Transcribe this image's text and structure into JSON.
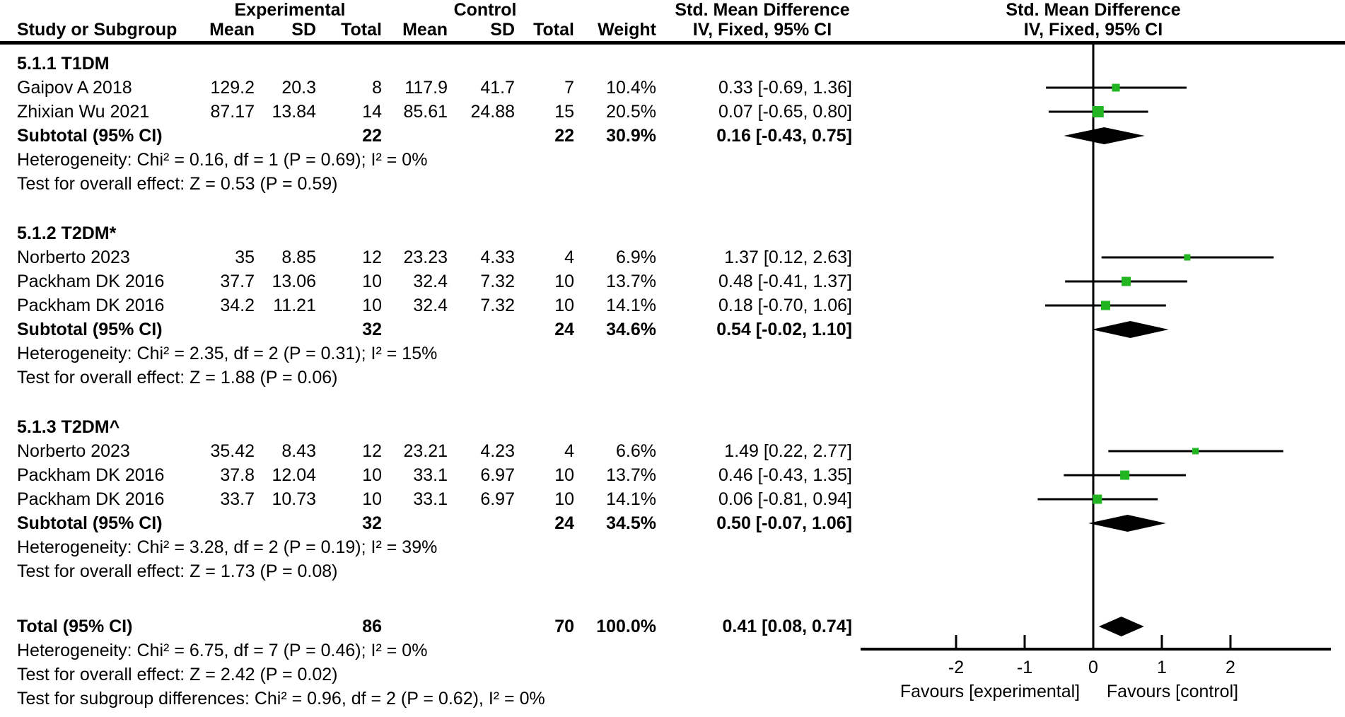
{
  "header": {
    "group_experimental": "Experimental",
    "group_control": "Control",
    "smd_left": "Std. Mean Difference",
    "smd_right": "Std. Mean Difference",
    "col_study": "Study or Subgroup",
    "col_mean": "Mean",
    "col_sd": "SD",
    "col_total": "Total",
    "col_weight": "Weight",
    "col_ci_left": "IV, Fixed, 95% CI",
    "col_ci_right": "IV, Fixed, 95% CI"
  },
  "chart_data": {
    "type": "forest",
    "effect_measure": "Std. Mean Difference",
    "model": "IV, Fixed, 95% CI",
    "marker_color": "#21b521",
    "axis": {
      "ticks": [
        -2,
        -1,
        0,
        1,
        2
      ],
      "range": [
        -3.4,
        3.45
      ],
      "favours_left": "Favours [experimental]",
      "favours_right": "Favours [control]"
    },
    "sections": [
      {
        "label": "5.1.1 T1DM",
        "studies": [
          {
            "study": "Gaipov A 2018",
            "mean1": "129.2",
            "sd1": "20.3",
            "total1": "8",
            "mean2": "117.9",
            "sd2": "41.7",
            "total2": "7",
            "weight": "10.4%",
            "weight_pct": 10.4,
            "ci_text": "0.33 [-0.69, 1.36]",
            "est": 0.33,
            "lo": -0.69,
            "hi": 1.36
          },
          {
            "study": "Zhixian Wu 2021",
            "mean1": "87.17",
            "sd1": "13.84",
            "total1": "14",
            "mean2": "85.61",
            "sd2": "24.88",
            "total2": "15",
            "weight": "20.5%",
            "weight_pct": 20.5,
            "ci_text": "0.07 [-0.65, 0.80]",
            "est": 0.07,
            "lo": -0.65,
            "hi": 0.8
          }
        ],
        "subtotal": {
          "label": "Subtotal (95% CI)",
          "total1": "22",
          "total2": "22",
          "weight": "30.9%",
          "ci_text": "0.16 [-0.43, 0.75]",
          "est": 0.16,
          "lo": -0.43,
          "hi": 0.75
        },
        "heterogeneity": "Heterogeneity: Chi² = 0.16, df = 1 (P = 0.69); I² = 0%",
        "overall_effect": "Test for overall effect: Z = 0.53 (P = 0.59)"
      },
      {
        "label": "5.1.2 T2DM*",
        "studies": [
          {
            "study": "Norberto 2023",
            "mean1": "35",
            "sd1": "8.85",
            "total1": "12",
            "mean2": "23.23",
            "sd2": "4.33",
            "total2": "4",
            "weight": "6.9%",
            "weight_pct": 6.9,
            "ci_text": "1.37 [0.12, 2.63]",
            "est": 1.37,
            "lo": 0.12,
            "hi": 2.63
          },
          {
            "study": "Packham DK 2016",
            "mean1": "37.7",
            "sd1": "13.06",
            "total1": "10",
            "mean2": "32.4",
            "sd2": "7.32",
            "total2": "10",
            "weight": "13.7%",
            "weight_pct": 13.7,
            "ci_text": "0.48 [-0.41, 1.37]",
            "est": 0.48,
            "lo": -0.41,
            "hi": 1.37
          },
          {
            "study": "Packham DK 2016",
            "mean1": "34.2",
            "sd1": "11.21",
            "total1": "10",
            "mean2": "32.4",
            "sd2": "7.32",
            "total2": "10",
            "weight": "14.1%",
            "weight_pct": 14.1,
            "ci_text": "0.18 [-0.70, 1.06]",
            "est": 0.18,
            "lo": -0.7,
            "hi": 1.06
          }
        ],
        "subtotal": {
          "label": "Subtotal (95% CI)",
          "total1": "32",
          "total2": "24",
          "weight": "34.6%",
          "ci_text": "0.54 [-0.02, 1.10]",
          "est": 0.54,
          "lo": -0.02,
          "hi": 1.1
        },
        "heterogeneity": "Heterogeneity: Chi² = 2.35, df = 2 (P = 0.31); I² = 15%",
        "overall_effect": "Test for overall effect: Z = 1.88 (P = 0.06)"
      },
      {
        "label": "5.1.3 T2DM^",
        "studies": [
          {
            "study": "Norberto 2023",
            "mean1": "35.42",
            "sd1": "8.43",
            "total1": "12",
            "mean2": "23.21",
            "sd2": "4.23",
            "total2": "4",
            "weight": "6.6%",
            "weight_pct": 6.6,
            "ci_text": "1.49 [0.22, 2.77]",
            "est": 1.49,
            "lo": 0.22,
            "hi": 2.77
          },
          {
            "study": "Packham DK 2016",
            "mean1": "37.8",
            "sd1": "12.04",
            "total1": "10",
            "mean2": "33.1",
            "sd2": "6.97",
            "total2": "10",
            "weight": "13.7%",
            "weight_pct": 13.7,
            "ci_text": "0.46 [-0.43, 1.35]",
            "est": 0.46,
            "lo": -0.43,
            "hi": 1.35
          },
          {
            "study": "Packham DK 2016",
            "mean1": "33.7",
            "sd1": "10.73",
            "total1": "10",
            "mean2": "33.1",
            "sd2": "6.97",
            "total2": "10",
            "weight": "14.1%",
            "weight_pct": 14.1,
            "ci_text": "0.06 [-0.81, 0.94]",
            "est": 0.06,
            "lo": -0.81,
            "hi": 0.94
          }
        ],
        "subtotal": {
          "label": "Subtotal (95% CI)",
          "total1": "32",
          "total2": "24",
          "weight": "34.5%",
          "ci_text": "0.50 [-0.07, 1.06]",
          "est": 0.5,
          "lo": -0.07,
          "hi": 1.06
        },
        "heterogeneity": "Heterogeneity: Chi² = 3.28, df = 2 (P = 0.19); I² = 39%",
        "overall_effect": "Test for overall effect: Z = 1.73 (P = 0.08)"
      }
    ],
    "total": {
      "label": "Total (95% CI)",
      "total1": "86",
      "total2": "70",
      "weight": "100.0%",
      "ci_text": "0.41 [0.08, 0.74]",
      "est": 0.41,
      "lo": 0.08,
      "hi": 0.74,
      "footnotes": [
        "Heterogeneity: Chi² = 6.75, df = 7 (P = 0.46); I² = 0%",
        "Test for overall effect: Z = 2.42 (P = 0.02)",
        "Test for subgroup differences: Chi² = 0.96, df = 2 (P = 0.62), I² = 0%"
      ]
    }
  }
}
